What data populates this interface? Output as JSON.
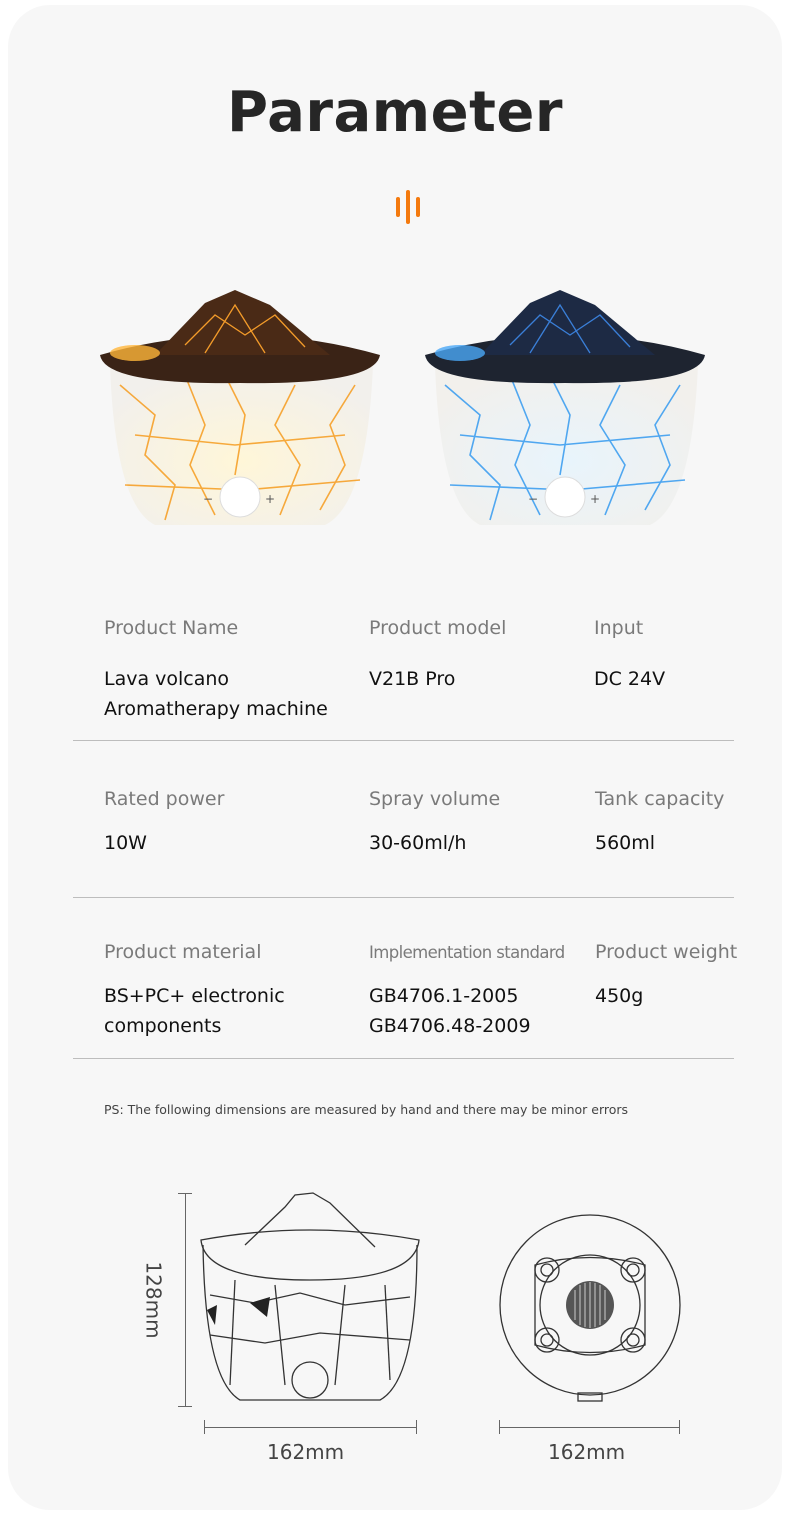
{
  "title": "Parameter",
  "accent_color": "#f47a0e",
  "products": [
    {
      "name": "orange-lava-volcano-diffuser",
      "glow_color": "#f7a531"
    },
    {
      "name": "blue-lava-volcano-diffuser",
      "glow_color": "#3fa6f2"
    }
  ],
  "spec_rows": [
    {
      "cells": [
        {
          "label": "Product Name",
          "value": "Lava volcano Aromatherapy machine"
        },
        {
          "label": "Product model",
          "value": "V21B Pro"
        },
        {
          "label": "Input",
          "value": "DC 24V"
        }
      ]
    },
    {
      "cells": [
        {
          "label": "Rated power",
          "value": "10W"
        },
        {
          "label": "Spray volume",
          "value": "30-60ml/h"
        },
        {
          "label": "Tank capacity",
          "value": "560ml"
        }
      ]
    },
    {
      "cells": [
        {
          "label": "Product material",
          "value": "BS+PC+ electronic components"
        },
        {
          "label": "Implementation standard",
          "value": "GB4706.1-2005 GB4706.48-2009"
        },
        {
          "label": "Product weight",
          "value": "450g"
        }
      ]
    }
  ],
  "note": "PS: The following dimensions are measured by hand and there may be minor errors",
  "dimensions": {
    "height": "128mm",
    "width_side": "162mm",
    "width_bottom": "162mm"
  }
}
